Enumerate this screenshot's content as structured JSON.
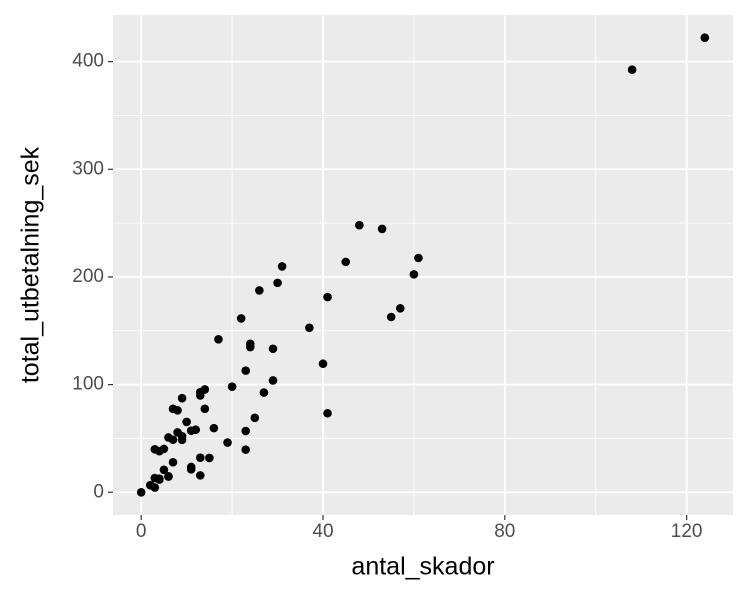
{
  "chart_data": {
    "type": "scatter",
    "x_label": "antal_skador",
    "y_label": "total_utbetalning_sek",
    "xlim": [
      -6.2,
      130.2
    ],
    "ylim": [
      -21.1,
      443.3
    ],
    "xticks": [
      0,
      40,
      80,
      120
    ],
    "yticks": [
      0,
      100,
      200,
      300,
      400
    ],
    "x_minor_ticks": [
      20,
      60,
      100
    ],
    "y_minor_ticks": [
      50,
      150,
      250,
      350
    ],
    "grid": true,
    "color": "#000000",
    "x": [
      108,
      19,
      13,
      124,
      40,
      57,
      23,
      14,
      45,
      10,
      5,
      48,
      11,
      23,
      7,
      2,
      24,
      6,
      3,
      23,
      6,
      9,
      9,
      3,
      29,
      7,
      4,
      20,
      7,
      4,
      0,
      25,
      6,
      5,
      22,
      11,
      61,
      12,
      4,
      16,
      13,
      60,
      41,
      37,
      55,
      41,
      11,
      27,
      8,
      3,
      17,
      13,
      13,
      15,
      8,
      29,
      30,
      24,
      9,
      31,
      14,
      53,
      26
    ],
    "values": [
      392.5,
      46.2,
      15.7,
      422.2,
      119.4,
      170.9,
      56.9,
      77.5,
      214,
      65.3,
      20.9,
      248.1,
      23.5,
      39.6,
      48.8,
      6.6,
      134.9,
      50.9,
      4.4,
      113,
      14.8,
      48.7,
      52.1,
      13.2,
      103.9,
      77.5,
      11.8,
      98.1,
      27.9,
      38.1,
      0,
      69.2,
      14.6,
      40.3,
      161.5,
      57.2,
      217.6,
      58.1,
      12.6,
      59.6,
      89.9,
      202.4,
      181.3,
      152.8,
      162.8,
      73.4,
      21.3,
      92.6,
      76.1,
      39.9,
      142.1,
      93,
      32.1,
      31.9,
      55.6,
      133.3,
      194.5,
      137.9,
      87.4,
      209.8,
      95.5,
      244.6,
      187.5
    ]
  }
}
